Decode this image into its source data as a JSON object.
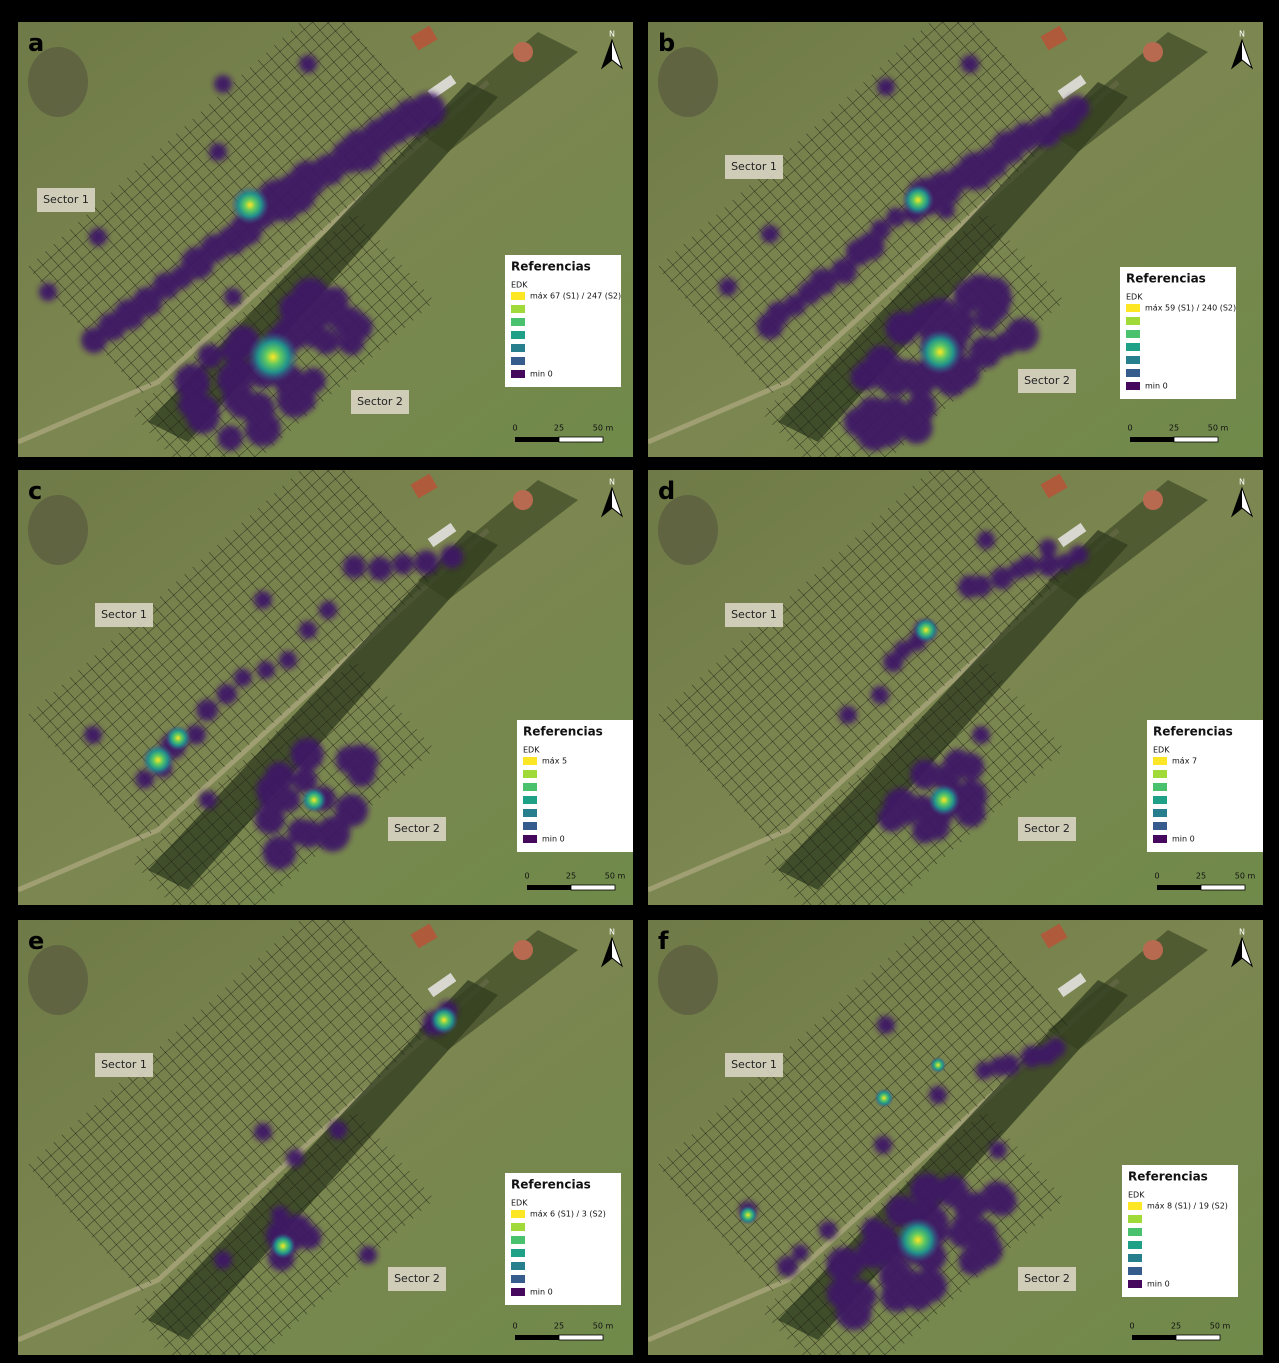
{
  "panels": [
    {
      "letter": "a",
      "sector_1": "Sector 1",
      "sector_2": "Sector 2",
      "legend": {
        "title": "Referencias",
        "subtitle": "EDK",
        "max": "máx 67 (S1) / 247 (S2)",
        "min": "min 0"
      },
      "scale": [
        "0",
        "25",
        "50 m"
      ],
      "north": "N"
    },
    {
      "letter": "b",
      "sector_1": "Sector 1",
      "sector_2": "Sector 2",
      "legend": {
        "title": "Referencias",
        "subtitle": "EDK",
        "max": "máx 59 (S1) / 240 (S2)",
        "min": "min 0"
      },
      "scale": [
        "0",
        "25",
        "50 m"
      ],
      "north": "N"
    },
    {
      "letter": "c",
      "sector_1": "Sector 1",
      "sector_2": "Sector 2",
      "legend": {
        "title": "Referencias",
        "subtitle": "EDK",
        "max": "máx 5",
        "min": "min 0"
      },
      "scale": [
        "0",
        "25",
        "50 m"
      ],
      "north": "N"
    },
    {
      "letter": "d",
      "sector_1": "Sector 1",
      "sector_2": "Sector 2",
      "legend": {
        "title": "Referencias",
        "subtitle": "EDK",
        "max": "máx 7",
        "min": "min 0"
      },
      "scale": [
        "0",
        "25",
        "50 m"
      ],
      "north": "N"
    },
    {
      "letter": "e",
      "sector_1": "Sector 1",
      "sector_2": "Sector 2",
      "legend": {
        "title": "Referencias",
        "subtitle": "EDK",
        "max": "máx 6 (S1) / 3 (S2)",
        "min": "min 0"
      },
      "scale": [
        "0",
        "25",
        "50 m"
      ],
      "north": "N"
    },
    {
      "letter": "f",
      "sector_1": "Sector 1",
      "sector_2": "Sector 2",
      "legend": {
        "title": "Referencias",
        "subtitle": "EDK",
        "max": "máx 8 (S1) / 19 (S2)",
        "min": "min 0"
      },
      "scale": [
        "0",
        "25",
        "50 m"
      ],
      "north": "N"
    }
  ]
}
